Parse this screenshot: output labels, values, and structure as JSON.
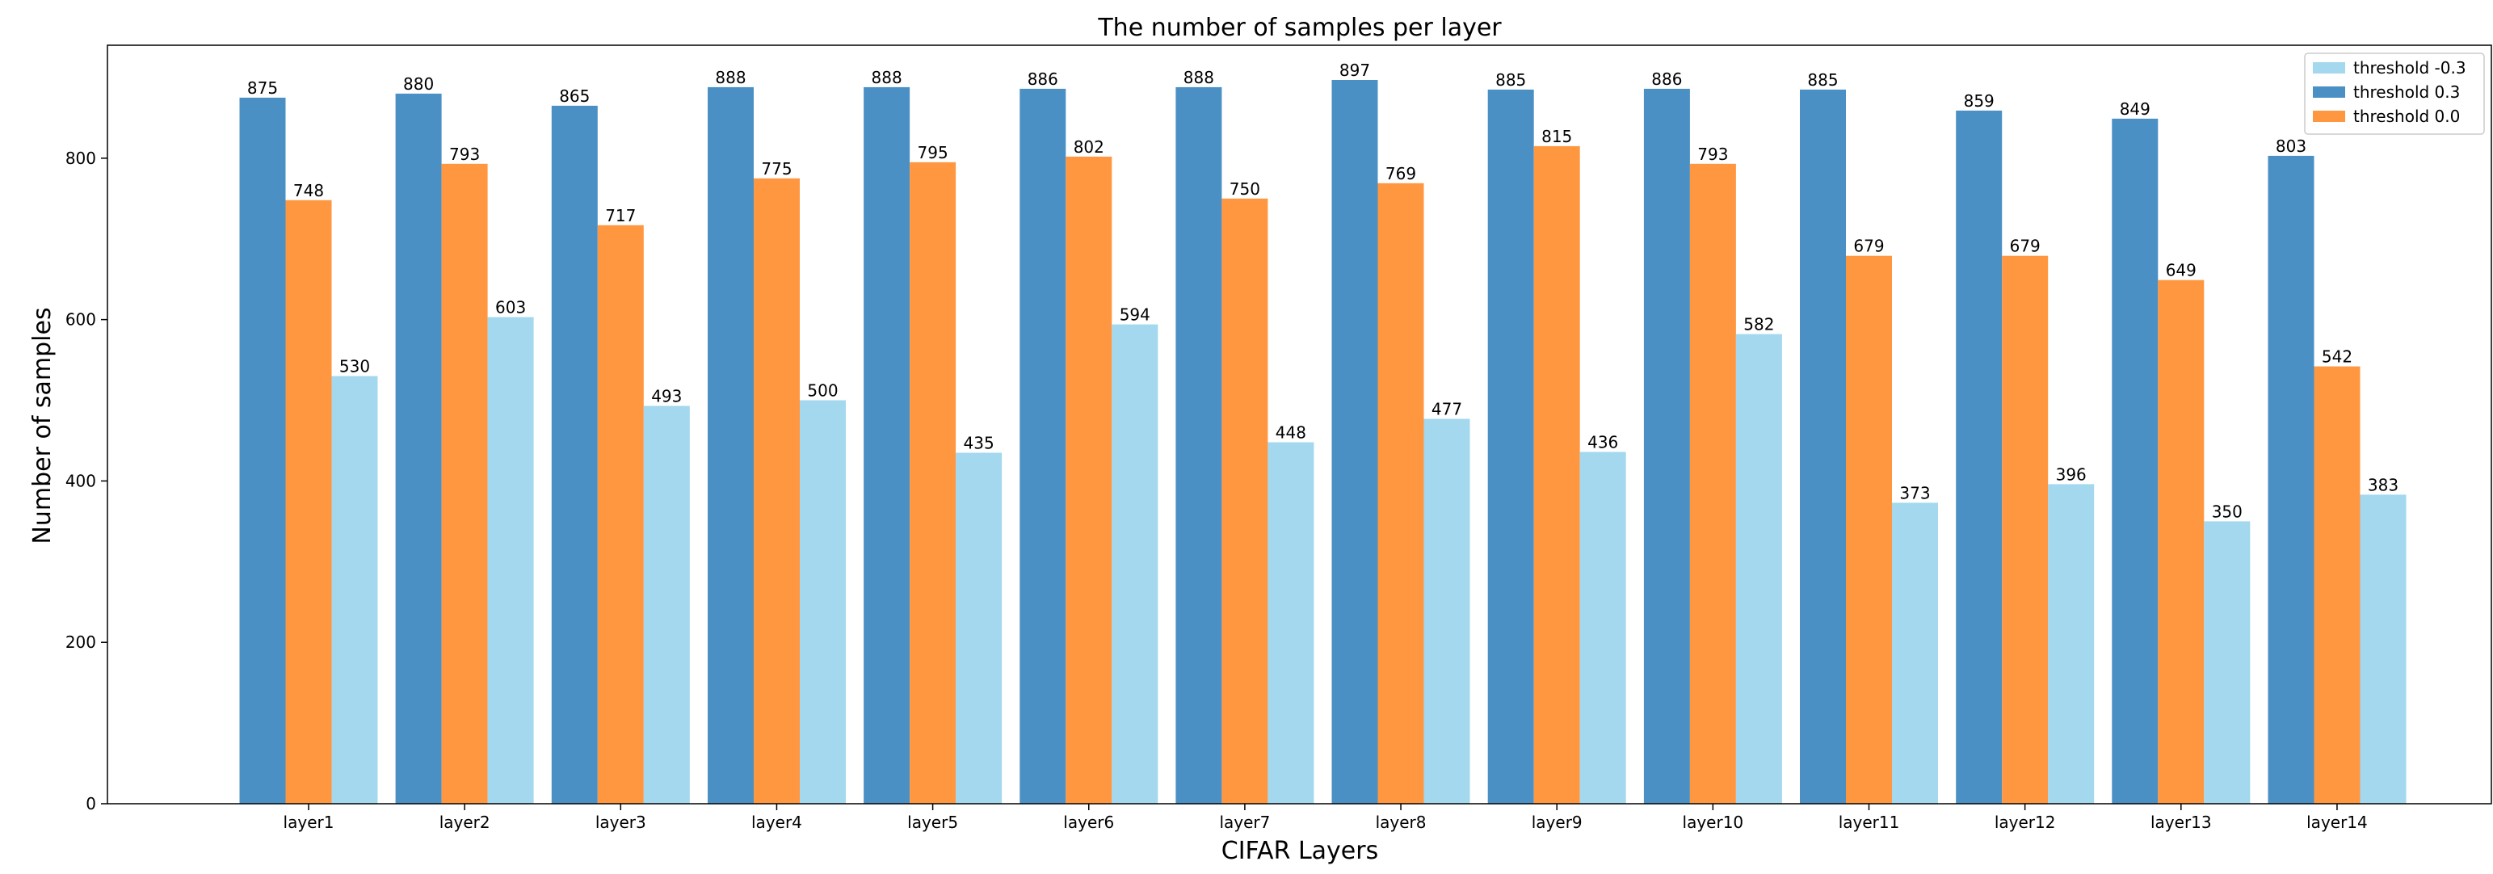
{
  "chart_data": {
    "type": "bar",
    "title": "The number of samples per layer",
    "xlabel": "CIFAR Layers",
    "ylabel": "Number of samples",
    "ylim": [
      0,
      940
    ],
    "yticks": [
      0,
      200,
      400,
      600,
      800
    ],
    "grid": false,
    "legend_position": "top-right",
    "categories": [
      "layer1",
      "layer2",
      "layer3",
      "layer4",
      "layer5",
      "layer6",
      "layer7",
      "layer8",
      "layer9",
      "layer10",
      "layer11",
      "layer12",
      "layer13",
      "layer14"
    ],
    "series": [
      {
        "name": "threshold 0.3",
        "color": "#4a90c4",
        "values": [
          875,
          880,
          865,
          888,
          888,
          886,
          888,
          897,
          885,
          886,
          885,
          859,
          849,
          803
        ]
      },
      {
        "name": "threshold 0.0",
        "color": "#ff9741",
        "values": [
          748,
          793,
          717,
          775,
          795,
          802,
          750,
          769,
          815,
          793,
          679,
          679,
          649,
          542
        ]
      },
      {
        "name": "threshold -0.3",
        "color": "#a3d8ee",
        "values": [
          530,
          603,
          493,
          500,
          435,
          594,
          448,
          477,
          436,
          582,
          373,
          396,
          350,
          383
        ]
      }
    ],
    "legend_order": [
      "threshold -0.3",
      "threshold 0.3",
      "threshold 0.0"
    ]
  }
}
